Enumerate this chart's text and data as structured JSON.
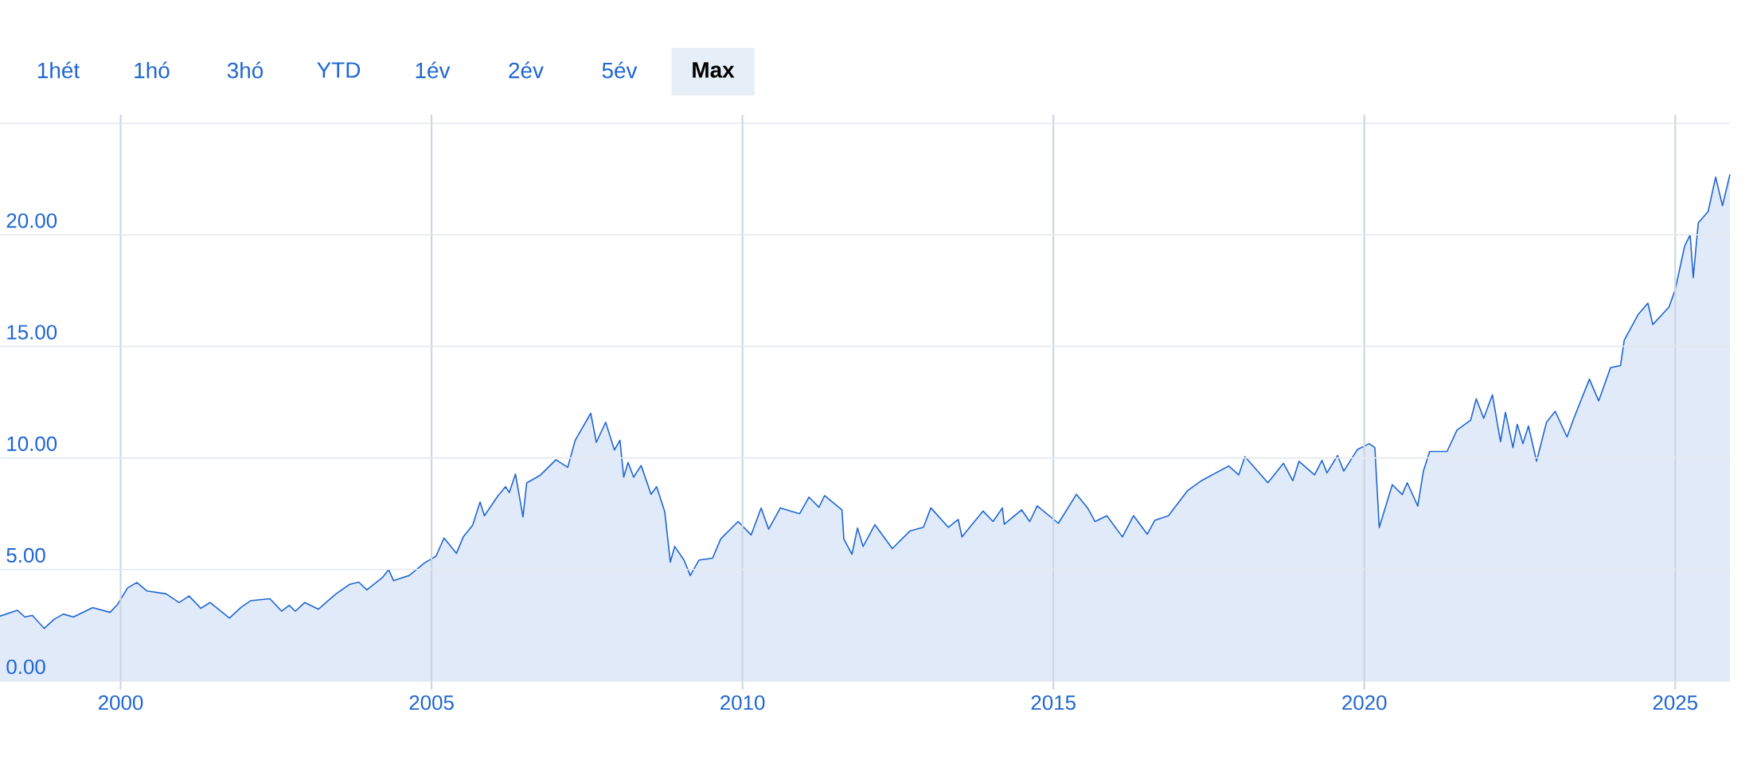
{
  "chart_data": {
    "type": "area",
    "annotations": [
      "1hét",
      "1hó",
      "3hó",
      "YTD",
      "1év",
      "2év",
      "5év",
      "Max"
    ],
    "x": [
      1998.06,
      1998.34,
      1998.46,
      1998.58,
      1998.77,
      1998.93,
      1999.08,
      1999.24,
      1999.55,
      1999.83,
      1999.95,
      2000.11,
      2000.26,
      2000.42,
      2000.73,
      2000.94,
      2001.1,
      2001.29,
      2001.44,
      2001.75,
      2001.94,
      2002.09,
      2002.4,
      2002.59,
      2002.71,
      2002.81,
      2002.96,
      2003.18,
      2003.46,
      2003.68,
      2003.83,
      2003.96,
      2004.21,
      2004.31,
      2004.39,
      2004.64,
      2004.89,
      2005.07,
      2005.2,
      2005.29,
      2005.4,
      2005.51,
      2005.66,
      2005.78,
      2005.85,
      2006.07,
      2006.19,
      2006.25,
      2006.35,
      2006.47,
      2006.53,
      2006.75,
      2007.0,
      2007.19,
      2007.31,
      2007.56,
      2007.65,
      2007.8,
      2007.94,
      2008.03,
      2008.09,
      2008.16,
      2008.25,
      2008.37,
      2008.53,
      2008.62,
      2008.75,
      2008.84,
      2008.91,
      2009.06,
      2009.16,
      2009.3,
      2009.52,
      2009.65,
      2009.93,
      2010.14,
      2010.3,
      2010.42,
      2010.61,
      2010.92,
      2011.07,
      2011.23,
      2011.32,
      2011.6,
      2011.63,
      2011.76,
      2011.85,
      2011.94,
      2012.13,
      2012.41,
      2012.69,
      2012.91,
      2013.03,
      2013.31,
      2013.47,
      2013.53,
      2013.87,
      2014.03,
      2014.18,
      2014.21,
      2014.49,
      2014.62,
      2014.74,
      2015.08,
      2015.37,
      2015.55,
      2015.67,
      2015.86,
      2016.11,
      2016.29,
      2016.51,
      2016.63,
      2016.85,
      2017.16,
      2017.38,
      2017.82,
      2017.98,
      2018.08,
      2018.45,
      2018.7,
      2018.85,
      2018.95,
      2019.2,
      2019.32,
      2019.4,
      2019.57,
      2019.67,
      2019.89,
      2020.08,
      2020.17,
      2020.24,
      2020.45,
      2020.61,
      2020.69,
      2020.86,
      2020.95,
      2021.05,
      2021.33,
      2021.49,
      2021.71,
      2021.8,
      2021.92,
      2022.06,
      2022.19,
      2022.27,
      2022.39,
      2022.46,
      2022.55,
      2022.64,
      2022.77,
      2022.93,
      2023.07,
      2023.26,
      2023.37,
      2023.62,
      2023.77,
      2023.96,
      2024.12,
      2024.18,
      2024.4,
      2024.56,
      2024.64,
      2024.9,
      2025.0,
      2025.15,
      2025.24,
      2025.29,
      2025.37,
      2025.53,
      2025.65,
      2025.76,
      2025.88
    ],
    "series": [
      {
        "color": "#1f66d1",
        "values": [
          2.91,
          3.17,
          2.87,
          2.94,
          2.36,
          2.77,
          3.0,
          2.87,
          3.29,
          3.08,
          3.43,
          4.17,
          4.42,
          4.04,
          3.91,
          3.52,
          3.81,
          3.26,
          3.52,
          2.82,
          3.31,
          3.6,
          3.69,
          3.13,
          3.39,
          3.13,
          3.52,
          3.22,
          3.9,
          4.33,
          4.43,
          4.09,
          4.64,
          4.99,
          4.5,
          4.73,
          5.3,
          5.59,
          6.41,
          6.11,
          5.72,
          6.46,
          6.98,
          8.02,
          7.41,
          8.31,
          8.71,
          8.45,
          9.28,
          7.36,
          8.88,
          9.23,
          9.92,
          9.58,
          10.79,
          12.0,
          10.7,
          11.6,
          10.36,
          10.79,
          9.14,
          9.8,
          9.14,
          9.66,
          8.37,
          8.71,
          7.59,
          5.33,
          6.03,
          5.42,
          4.73,
          5.42,
          5.51,
          6.37,
          7.15,
          6.55,
          7.76,
          6.81,
          7.76,
          7.5,
          8.24,
          7.79,
          8.31,
          7.67,
          6.37,
          5.68,
          6.86,
          6.03,
          7.01,
          5.94,
          6.72,
          6.89,
          7.76,
          6.89,
          7.24,
          6.46,
          7.62,
          7.15,
          7.76,
          7.03,
          7.67,
          7.15,
          7.85,
          7.07,
          8.37,
          7.76,
          7.15,
          7.41,
          6.46,
          7.41,
          6.58,
          7.2,
          7.41,
          8.54,
          8.98,
          9.64,
          9.24,
          10.06,
          8.89,
          9.76,
          8.98,
          9.85,
          9.24,
          9.89,
          9.33,
          10.11,
          9.41,
          10.38,
          10.64,
          10.46,
          6.88,
          8.8,
          8.36,
          8.89,
          7.84,
          9.41,
          10.29,
          10.29,
          11.25,
          11.69,
          12.65,
          11.78,
          12.83,
          10.73,
          12.04,
          10.46,
          11.51,
          10.64,
          11.43,
          9.85,
          11.6,
          12.09,
          10.94,
          11.78,
          13.53,
          12.56,
          14.05,
          14.14,
          15.28,
          16.41,
          16.94,
          15.98,
          16.76,
          17.55,
          19.48,
          20.0,
          18.08,
          20.53,
          21.05,
          22.59,
          21.31,
          22.71
        ]
      }
    ],
    "xlim": [
      1998.06,
      2025.88
    ],
    "ylim": [
      0,
      25
    ],
    "xticks": [
      2000,
      2005,
      2010,
      2015,
      2020,
      2025
    ],
    "yticks": [
      {
        "value": 0,
        "label": "0.00"
      },
      {
        "value": 5,
        "label": "5.00"
      },
      {
        "value": 10,
        "label": "10.00"
      },
      {
        "value": 15,
        "label": "15.00"
      },
      {
        "value": 20,
        "label": "20.00"
      },
      {
        "value": 25,
        "label": null
      }
    ],
    "grid": true
  }
}
